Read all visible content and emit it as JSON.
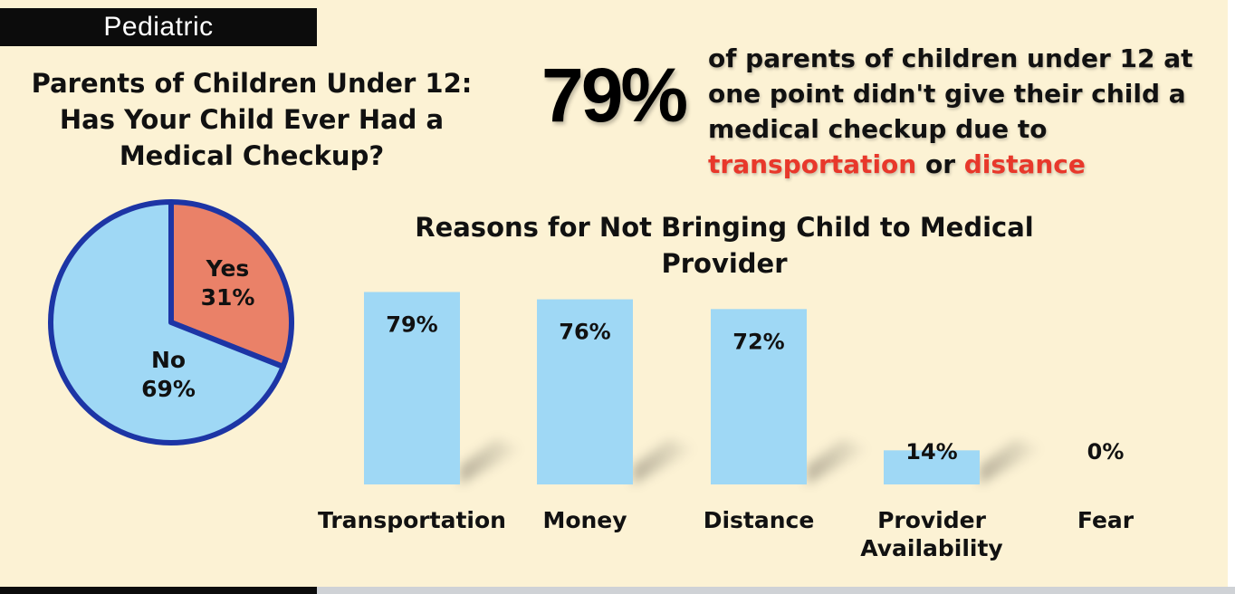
{
  "header": {
    "tag": "Pediatric"
  },
  "pie": {
    "title": "Parents of Children Under 12: Has Your Child Ever Had a Medical Checkup?"
  },
  "stat": {
    "value": "79%",
    "text_before": "of parents of children under 12 at one point didn't give their child a medical checkup due to",
    "highlight1": "transportation",
    "connector": "or",
    "highlight2": "distance"
  },
  "bar_chart": {
    "title": "Reasons for Not Bringing Child to Medical Provider"
  },
  "colors": {
    "accent_red": "#e8382b",
    "pie_yes": "#ea8168",
    "pie_no": "#9fd8f5",
    "pie_outline": "#1d35a5",
    "bar": "#9fd8f5",
    "background": "#fcf2d4"
  },
  "chart_data": [
    {
      "type": "pie",
      "title": "Parents of Children Under 12: Has Your Child Ever Had a Medical Checkup?",
      "slices": [
        {
          "label": "Yes",
          "value": 31,
          "display": "31%"
        },
        {
          "label": "No",
          "value": 69,
          "display": "69%"
        }
      ]
    },
    {
      "type": "bar",
      "title": "Reasons for Not Bringing Child to Medical Provider",
      "categories": [
        "Transportation",
        "Money",
        "Distance",
        "Provider Availability",
        "Fear"
      ],
      "values": [
        79,
        76,
        72,
        14,
        0
      ],
      "labels": [
        "79%",
        "76%",
        "72%",
        "14%",
        "0%"
      ],
      "ylim": [
        0,
        100
      ]
    }
  ]
}
